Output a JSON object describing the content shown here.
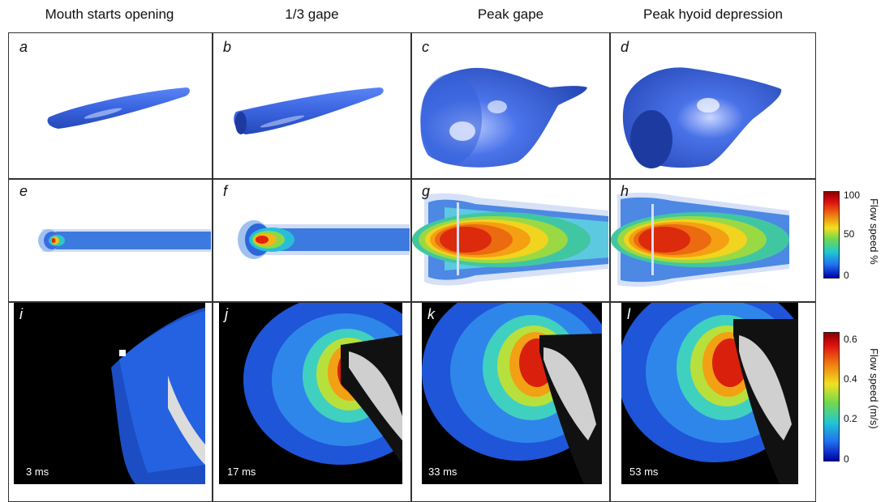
{
  "columns": [
    {
      "title": "Mouth starts opening"
    },
    {
      "title": "1/3 gape"
    },
    {
      "title": "Peak gape"
    },
    {
      "title": "Peak hyoid depression"
    }
  ],
  "panels": {
    "row1": [
      "a",
      "b",
      "c",
      "d"
    ],
    "row2": [
      "e",
      "f",
      "g",
      "h"
    ],
    "row3": [
      "i",
      "j",
      "k",
      "l"
    ]
  },
  "times": [
    "3 ms",
    "17 ms",
    "33 ms",
    "53 ms"
  ],
  "colorbar_percent": {
    "title": "Flow speed %",
    "ticks": [
      "100",
      "50",
      "0"
    ]
  },
  "colorbar_speed": {
    "title": "Flow speed (m/s)",
    "ticks": [
      "0.6",
      "0.4",
      "0.2",
      "0"
    ]
  },
  "colors": {
    "surface": "#3a64e0",
    "max": "#b00000",
    "min": "#0000b0"
  }
}
